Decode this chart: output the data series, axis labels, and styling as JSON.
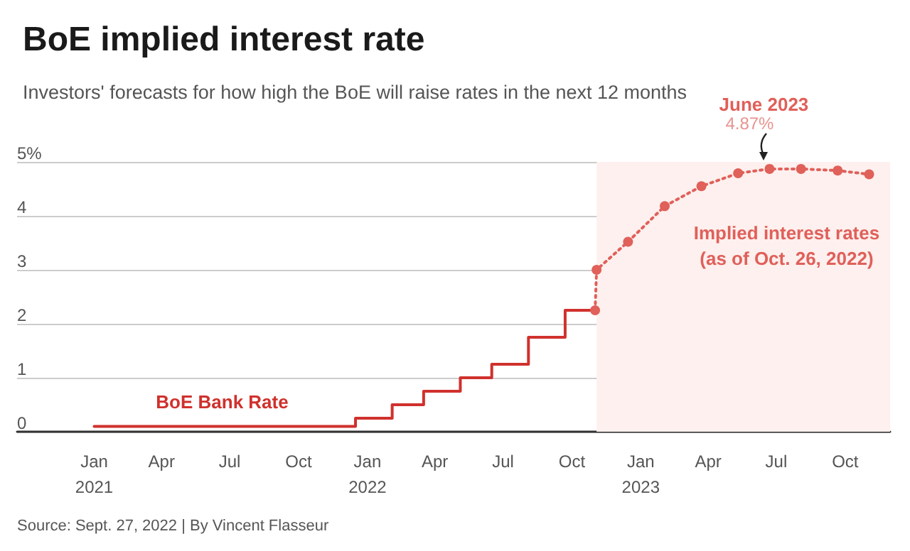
{
  "chart_data": {
    "type": "step",
    "title": "BoE implied interest rate",
    "subtitle": "Investors' forecasts for how high the BoE will raise rates in the next 12 months",
    "series": [
      {
        "name": "BoE Bank Rate",
        "color": "#d0312d",
        "x": [
          "2021-01-01",
          "2021-12-16",
          "2022-02-03",
          "2022-03-17",
          "2022-05-05",
          "2022-06-16",
          "2022-08-04",
          "2022-09-22",
          "2022-11-01"
        ],
        "values": [
          0.1,
          0.25,
          0.5,
          0.75,
          1.0,
          1.25,
          1.75,
          2.25,
          2.25
        ],
        "marker": "none",
        "line_style": "solid"
      },
      {
        "name": "Implied interest rates\n(as of Oct. 26, 2022)",
        "type": "line",
        "color": "#e0605a",
        "x": [
          "2022-11-01",
          "2022-11-03",
          "2022-12-15",
          "2023-02-02",
          "2023-03-23",
          "2023-05-11",
          "2023-06-22",
          "2023-08-03",
          "2023-09-21",
          "2023-11-02"
        ],
        "values": [
          2.25,
          3.0,
          3.52,
          4.18,
          4.55,
          4.79,
          4.87,
          4.87,
          4.84,
          4.77
        ],
        "marker": "circle",
        "line_style": "dotted"
      }
    ],
    "xlim": [
      "2020-09-20",
      "2023-11-30"
    ],
    "xticks": [
      {
        "value": "2021-01-01",
        "label": "Jan\n2021"
      },
      {
        "value": "2021-04-01",
        "label": "Apr"
      },
      {
        "value": "2021-07-01",
        "label": "Jul"
      },
      {
        "value": "2021-10-01",
        "label": "Oct"
      },
      {
        "value": "2022-01-01",
        "label": "Jan\n2022"
      },
      {
        "value": "2022-04-01",
        "label": "Apr"
      },
      {
        "value": "2022-07-01",
        "label": "Jul"
      },
      {
        "value": "2022-10-01",
        "label": "Oct"
      },
      {
        "value": "2023-01-01",
        "label": "Jan\n2023"
      },
      {
        "value": "2023-04-01",
        "label": "Apr"
      },
      {
        "value": "2023-07-01",
        "label": "Jul"
      },
      {
        "value": "2023-10-01",
        "label": "Oct"
      }
    ],
    "ylim": [
      0,
      5
    ],
    "yticks": [
      0,
      1,
      2,
      3,
      4,
      {
        "value": 5,
        "label": "5%"
      }
    ],
    "grid": "y",
    "legend": false,
    "bands": [
      {
        "axis": "x",
        "from": "2022-11-03",
        "to": "2023-11-30",
        "color": "#fdf0ee"
      }
    ],
    "annotations": [
      {
        "text": "June 2023\n4.87%",
        "x": "2023-06-22",
        "y": 4.87
      },
      "Source: Sept. 27, 2022 | By Vincent Flasseur"
    ]
  }
}
